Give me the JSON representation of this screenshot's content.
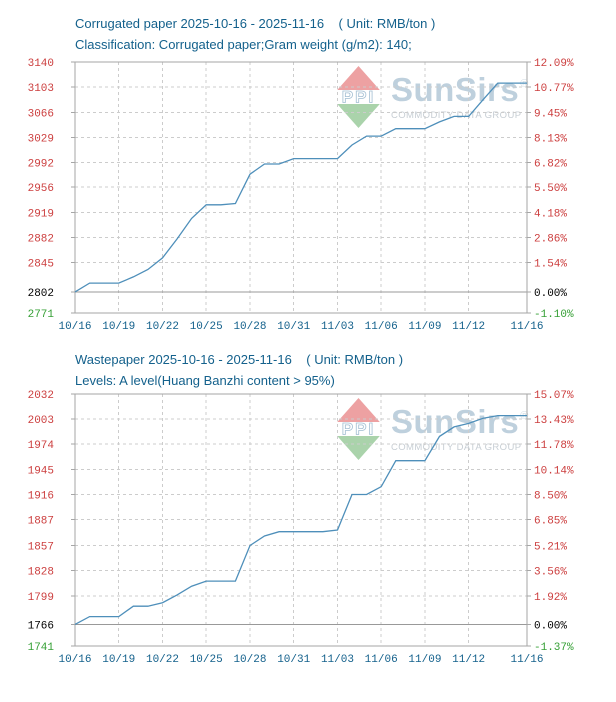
{
  "watermark": {
    "logo": "PPI",
    "brand": "SunSirs",
    "registered": "®",
    "tagline": "COMMODITY DATA GROUP",
    "logo_top_color": "#eda1a2",
    "logo_bottom_color": "#aad3ab"
  },
  "colors": {
    "accent_blue": "#14618c",
    "line": "#4e8fba",
    "tick_up": "#cc3e3e",
    "tick_base": "#000000",
    "tick_down": "#36a036",
    "grid": "#cccccc",
    "border": "#a6a6a6",
    "baseline": "#999999"
  },
  "chart_data": [
    {
      "type": "line",
      "title": "Corrugated paper 2025-10-16 - 2025-11-16    ( Unit: RMB/ton )",
      "subtitle": "Classification: Corrugated paper;Gram weight (g/m2): 140;",
      "unit": "RMB/ton",
      "xlabel": "",
      "ylabel": "",
      "grid": true,
      "legend_position": "none",
      "baseline_value": 2802,
      "ylim": [
        2771,
        3140
      ],
      "x": [
        "10/16",
        "10/17",
        "10/18",
        "10/19",
        "10/20",
        "10/21",
        "10/22",
        "10/23",
        "10/24",
        "10/25",
        "10/26",
        "10/27",
        "10/28",
        "10/29",
        "10/30",
        "10/31",
        "11/01",
        "11/02",
        "11/03",
        "11/04",
        "11/05",
        "11/06",
        "11/07",
        "11/08",
        "11/09",
        "11/10",
        "11/11",
        "11/12",
        "11/13",
        "11/14",
        "11/15",
        "11/16"
      ],
      "values": [
        2802,
        2815,
        2815,
        2815,
        2824,
        2835,
        2852,
        2880,
        2910,
        2930,
        2930,
        2932,
        2975,
        2990,
        2990,
        2998,
        2998,
        2998,
        2998,
        3018,
        3031,
        3031,
        3042,
        3042,
        3042,
        3052,
        3060,
        3060,
        3085,
        3109,
        3109,
        3109
      ],
      "y_ticks": [
        {
          "v": 3140,
          "price": "3140",
          "pct": "12.09%"
        },
        {
          "v": 3103,
          "price": "3103",
          "pct": "10.77%"
        },
        {
          "v": 3066,
          "price": "3066",
          "pct": "9.45%"
        },
        {
          "v": 3029,
          "price": "3029",
          "pct": "8.13%"
        },
        {
          "v": 2992,
          "price": "2992",
          "pct": "6.82%"
        },
        {
          "v": 2956,
          "price": "2956",
          "pct": "5.50%"
        },
        {
          "v": 2919,
          "price": "2919",
          "pct": "4.18%"
        },
        {
          "v": 2882,
          "price": "2882",
          "pct": "2.86%"
        },
        {
          "v": 2845,
          "price": "2845",
          "pct": "1.54%"
        },
        {
          "v": 2802,
          "price": "2802",
          "pct": "0.00%"
        },
        {
          "v": 2771,
          "price": "2771",
          "pct": "-1.10%"
        }
      ],
      "x_ticks": [
        {
          "i": 0,
          "label": "10/16"
        },
        {
          "i": 3,
          "label": "10/19"
        },
        {
          "i": 6,
          "label": "10/22"
        },
        {
          "i": 9,
          "label": "10/25"
        },
        {
          "i": 12,
          "label": "10/28"
        },
        {
          "i": 15,
          "label": "10/31"
        },
        {
          "i": 18,
          "label": "11/03"
        },
        {
          "i": 21,
          "label": "11/06"
        },
        {
          "i": 24,
          "label": "11/09"
        },
        {
          "i": 27,
          "label": "11/12"
        },
        {
          "i": 31,
          "label": "11/16"
        }
      ]
    },
    {
      "type": "line",
      "title": "Wastepaper 2025-10-16 - 2025-11-16    ( Unit: RMB/ton )",
      "subtitle": "Levels: A level(Huang Banzhi content > 95%)",
      "unit": "RMB/ton",
      "xlabel": "",
      "ylabel": "",
      "grid": true,
      "legend_position": "none",
      "baseline_value": 1766,
      "ylim": [
        1741,
        2032
      ],
      "x": [
        "10/16",
        "10/17",
        "10/18",
        "10/19",
        "10/20",
        "10/21",
        "10/22",
        "10/23",
        "10/24",
        "10/25",
        "10/26",
        "10/27",
        "10/28",
        "10/29",
        "10/30",
        "10/31",
        "11/01",
        "11/02",
        "11/03",
        "11/04",
        "11/05",
        "11/06",
        "11/07",
        "11/08",
        "11/09",
        "11/10",
        "11/11",
        "11/12",
        "11/13",
        "11/14",
        "11/15",
        "11/16"
      ],
      "values": [
        1766,
        1775,
        1775,
        1775,
        1787,
        1787,
        1791,
        1800,
        1810,
        1816,
        1816,
        1816,
        1857,
        1868,
        1873,
        1873,
        1873,
        1873,
        1875,
        1916,
        1916,
        1925,
        1955,
        1955,
        1955,
        1983,
        1994,
        1998,
        2004,
        2007,
        2007,
        2007
      ],
      "y_ticks": [
        {
          "v": 2032,
          "price": "2032",
          "pct": "15.07%"
        },
        {
          "v": 2003,
          "price": "2003",
          "pct": "13.43%"
        },
        {
          "v": 1974,
          "price": "1974",
          "pct": "11.78%"
        },
        {
          "v": 1945,
          "price": "1945",
          "pct": "10.14%"
        },
        {
          "v": 1916,
          "price": "1916",
          "pct": "8.50%"
        },
        {
          "v": 1887,
          "price": "1887",
          "pct": "6.85%"
        },
        {
          "v": 1857,
          "price": "1857",
          "pct": "5.21%"
        },
        {
          "v": 1828,
          "price": "1828",
          "pct": "3.56%"
        },
        {
          "v": 1799,
          "price": "1799",
          "pct": "1.92%"
        },
        {
          "v": 1766,
          "price": "1766",
          "pct": "0.00%"
        },
        {
          "v": 1741,
          "price": "1741",
          "pct": "-1.37%"
        }
      ],
      "x_ticks": [
        {
          "i": 0,
          "label": "10/16"
        },
        {
          "i": 3,
          "label": "10/19"
        },
        {
          "i": 6,
          "label": "10/22"
        },
        {
          "i": 9,
          "label": "10/25"
        },
        {
          "i": 12,
          "label": "10/28"
        },
        {
          "i": 15,
          "label": "10/31"
        },
        {
          "i": 18,
          "label": "11/03"
        },
        {
          "i": 21,
          "label": "11/06"
        },
        {
          "i": 24,
          "label": "11/09"
        },
        {
          "i": 27,
          "label": "11/12"
        },
        {
          "i": 31,
          "label": "11/16"
        }
      ]
    }
  ]
}
